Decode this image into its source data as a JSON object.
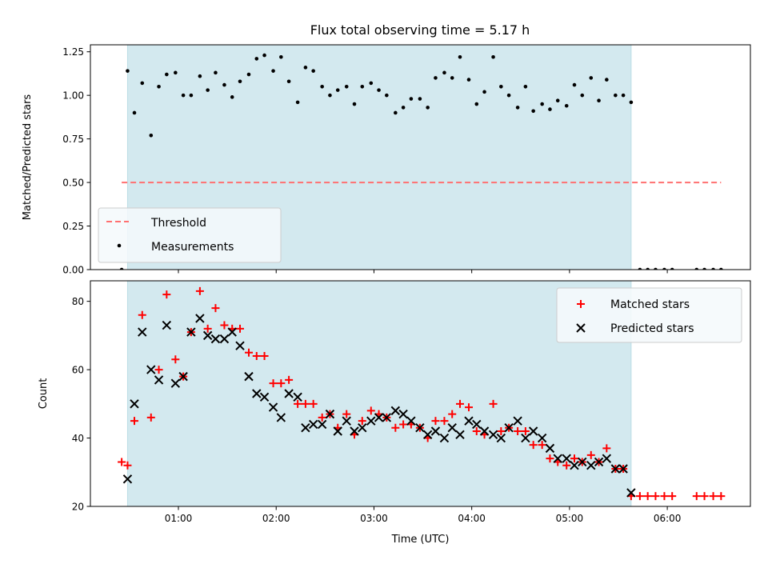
{
  "figure_title": "Flux total observing time = 5.17 h",
  "colors": {
    "shade": "#d3e9ef",
    "threshold": "#ff7070",
    "matched": "#ff0000",
    "predicted": "#000000",
    "measurement": "#000000"
  },
  "chart_data": [
    {
      "type": "scatter",
      "ylabel": "Matched/Predicted stars",
      "xlabel": "",
      "xlim": [
        0.1,
        6.85
      ],
      "ylim": [
        0.0,
        1.29
      ],
      "xticks": [
        1,
        2,
        3,
        4,
        5,
        6
      ],
      "xtick_labels": [
        "",
        "",
        "",
        "",
        "",
        ""
      ],
      "yticks": [
        0.0,
        0.25,
        0.5,
        0.75,
        1.0,
        1.25
      ],
      "ytick_labels": [
        "0.00",
        "0.25",
        "0.50",
        "0.75",
        "1.00",
        "1.25"
      ],
      "shaded_x": [
        0.48,
        5.63
      ],
      "threshold": {
        "name": "Threshold",
        "y": 0.5,
        "x": [
          0.42,
          6.55
        ]
      },
      "legend": {
        "loc": "lower-left",
        "entries": [
          "Threshold",
          "Measurements"
        ]
      },
      "series": [
        {
          "name": "Measurements",
          "x": [
            0.42,
            0.48,
            0.55,
            0.63,
            0.72,
            0.8,
            0.88,
            0.97,
            1.05,
            1.13,
            1.22,
            1.3,
            1.38,
            1.47,
            1.55,
            1.63,
            1.72,
            1.8,
            1.88,
            1.97,
            2.05,
            2.13,
            2.22,
            2.3,
            2.38,
            2.47,
            2.55,
            2.63,
            2.72,
            2.8,
            2.88,
            2.97,
            3.05,
            3.13,
            3.22,
            3.3,
            3.38,
            3.47,
            3.55,
            3.63,
            3.72,
            3.8,
            3.88,
            3.97,
            4.05,
            4.13,
            4.22,
            4.3,
            4.38,
            4.47,
            4.55,
            4.63,
            4.72,
            4.8,
            4.88,
            4.97,
            5.05,
            5.13,
            5.22,
            5.3,
            5.38,
            5.47,
            5.55,
            5.63,
            5.72,
            5.8,
            5.88,
            5.97,
            6.05,
            6.3,
            6.38,
            6.47,
            6.55
          ],
          "y": [
            0.0,
            1.14,
            0.9,
            1.07,
            0.77,
            1.05,
            1.12,
            1.13,
            1.0,
            1.0,
            1.11,
            1.03,
            1.13,
            1.06,
            0.99,
            1.08,
            1.12,
            1.21,
            1.23,
            1.14,
            1.22,
            1.08,
            0.96,
            1.16,
            1.14,
            1.05,
            1.0,
            1.03,
            1.05,
            0.95,
            1.05,
            1.07,
            1.03,
            1.0,
            0.9,
            0.93,
            0.98,
            0.98,
            0.93,
            1.1,
            1.13,
            1.1,
            1.22,
            1.09,
            0.95,
            1.02,
            1.22,
            1.05,
            1.0,
            0.93,
            1.05,
            0.91,
            0.95,
            0.92,
            0.97,
            0.94,
            1.06,
            1.0,
            1.1,
            0.97,
            1.09,
            1.0,
            1.0,
            0.96,
            0.0,
            0.0,
            0.0,
            0.0,
            0.0,
            0.0,
            0.0,
            0.0,
            0.0
          ]
        }
      ]
    },
    {
      "type": "scatter",
      "ylabel": "Count",
      "xlabel": "Time (UTC)",
      "xlim": [
        0.1,
        6.85
      ],
      "ylim": [
        20,
        86
      ],
      "xticks": [
        1,
        2,
        3,
        4,
        5,
        6
      ],
      "xtick_labels": [
        "01:00",
        "02:00",
        "03:00",
        "04:00",
        "05:00",
        "06:00"
      ],
      "yticks": [
        20,
        40,
        60,
        80
      ],
      "ytick_labels": [
        "20",
        "40",
        "60",
        "80"
      ],
      "shaded_x": [
        0.48,
        5.63
      ],
      "legend": {
        "loc": "upper-right",
        "entries": [
          "Matched stars",
          "Predicted stars"
        ]
      },
      "series": [
        {
          "name": "Matched stars",
          "x": [
            0.42,
            0.48,
            0.55,
            0.63,
            0.72,
            0.8,
            0.88,
            0.97,
            1.05,
            1.13,
            1.22,
            1.3,
            1.38,
            1.47,
            1.55,
            1.63,
            1.72,
            1.8,
            1.88,
            1.97,
            2.05,
            2.13,
            2.22,
            2.3,
            2.38,
            2.47,
            2.55,
            2.63,
            2.72,
            2.8,
            2.88,
            2.97,
            3.05,
            3.13,
            3.22,
            3.3,
            3.38,
            3.47,
            3.55,
            3.63,
            3.72,
            3.8,
            3.88,
            3.97,
            4.05,
            4.13,
            4.22,
            4.3,
            4.38,
            4.47,
            4.55,
            4.63,
            4.72,
            4.8,
            4.88,
            4.97,
            5.05,
            5.13,
            5.22,
            5.3,
            5.38,
            5.47,
            5.55,
            5.63,
            5.72,
            5.8,
            5.88,
            5.97,
            6.05,
            6.3,
            6.38,
            6.47,
            6.55
          ],
          "y": [
            33,
            32,
            45,
            76,
            46,
            60,
            82,
            63,
            58,
            71,
            83,
            72,
            78,
            73,
            72,
            72,
            65,
            64,
            64,
            56,
            56,
            57,
            50,
            50,
            50,
            46,
            47,
            43,
            47,
            41,
            45,
            48,
            47,
            46,
            43,
            44,
            44,
            43,
            40,
            45,
            45,
            47,
            50,
            49,
            42,
            41,
            50,
            42,
            43,
            42,
            42,
            38,
            38,
            34,
            33,
            32,
            34,
            33,
            35,
            33,
            37,
            31,
            31,
            23,
            23,
            23,
            23,
            23,
            23,
            23,
            23,
            23,
            23
          ]
        },
        {
          "name": "Predicted stars",
          "x": [
            0.48,
            0.55,
            0.63,
            0.72,
            0.8,
            0.88,
            0.97,
            1.05,
            1.13,
            1.22,
            1.3,
            1.38,
            1.47,
            1.55,
            1.63,
            1.72,
            1.8,
            1.88,
            1.97,
            2.05,
            2.13,
            2.22,
            2.3,
            2.38,
            2.47,
            2.55,
            2.63,
            2.72,
            2.8,
            2.88,
            2.97,
            3.05,
            3.13,
            3.22,
            3.3,
            3.38,
            3.47,
            3.55,
            3.63,
            3.72,
            3.8,
            3.88,
            3.97,
            4.05,
            4.13,
            4.22,
            4.3,
            4.38,
            4.47,
            4.55,
            4.63,
            4.72,
            4.8,
            4.88,
            4.97,
            5.05,
            5.13,
            5.22,
            5.3,
            5.38,
            5.47,
            5.55,
            5.63
          ],
          "y": [
            28,
            50,
            71,
            60,
            57,
            73,
            56,
            58,
            71,
            75,
            70,
            69,
            69,
            71,
            67,
            58,
            53,
            52,
            49,
            46,
            53,
            52,
            43,
            44,
            44,
            47,
            42,
            45,
            42,
            43,
            45,
            46,
            46,
            48,
            47,
            45,
            43,
            41,
            42,
            40,
            43,
            41,
            45,
            44,
            42,
            41,
            40,
            43,
            45,
            40,
            42,
            40,
            37,
            34,
            34,
            32,
            33,
            32,
            33,
            34,
            31,
            31,
            24
          ]
        }
      ]
    }
  ]
}
